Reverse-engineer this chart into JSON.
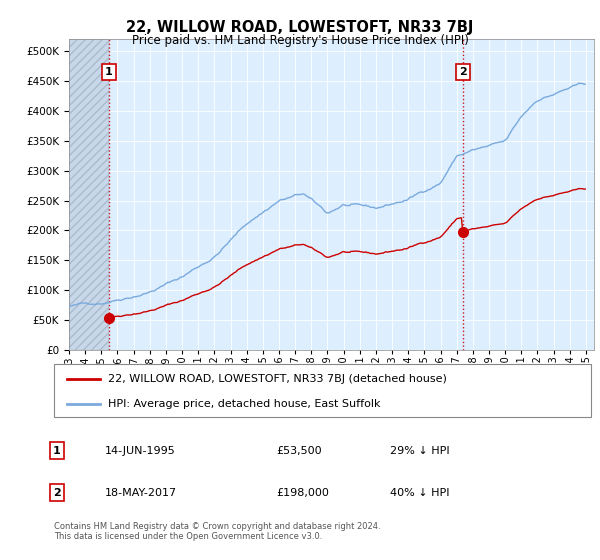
{
  "title": "22, WILLOW ROAD, LOWESTOFT, NR33 7BJ",
  "subtitle": "Price paid vs. HM Land Registry's House Price Index (HPI)",
  "property_label": "22, WILLOW ROAD, LOWESTOFT, NR33 7BJ (detached house)",
  "hpi_label": "HPI: Average price, detached house, East Suffolk",
  "sale1_date": "14-JUN-1995",
  "sale1_price": 53500,
  "sale1_note": "29% ↓ HPI",
  "sale2_date": "18-MAY-2017",
  "sale2_price": 198000,
  "sale2_note": "40% ↓ HPI",
  "footer": "Contains HM Land Registry data © Crown copyright and database right 2024.\nThis data is licensed under the Open Government Licence v3.0.",
  "property_color": "#cc0000",
  "hpi_color": "#7aaadd",
  "sale1_x": 1995.45,
  "sale2_x": 2017.37,
  "ylim_min": 0,
  "ylim_max": 520000,
  "xlim_min": 1993.0,
  "xlim_max": 2025.5,
  "background_plot": "#ddeeff",
  "hatch_end_x": 1995.45
}
